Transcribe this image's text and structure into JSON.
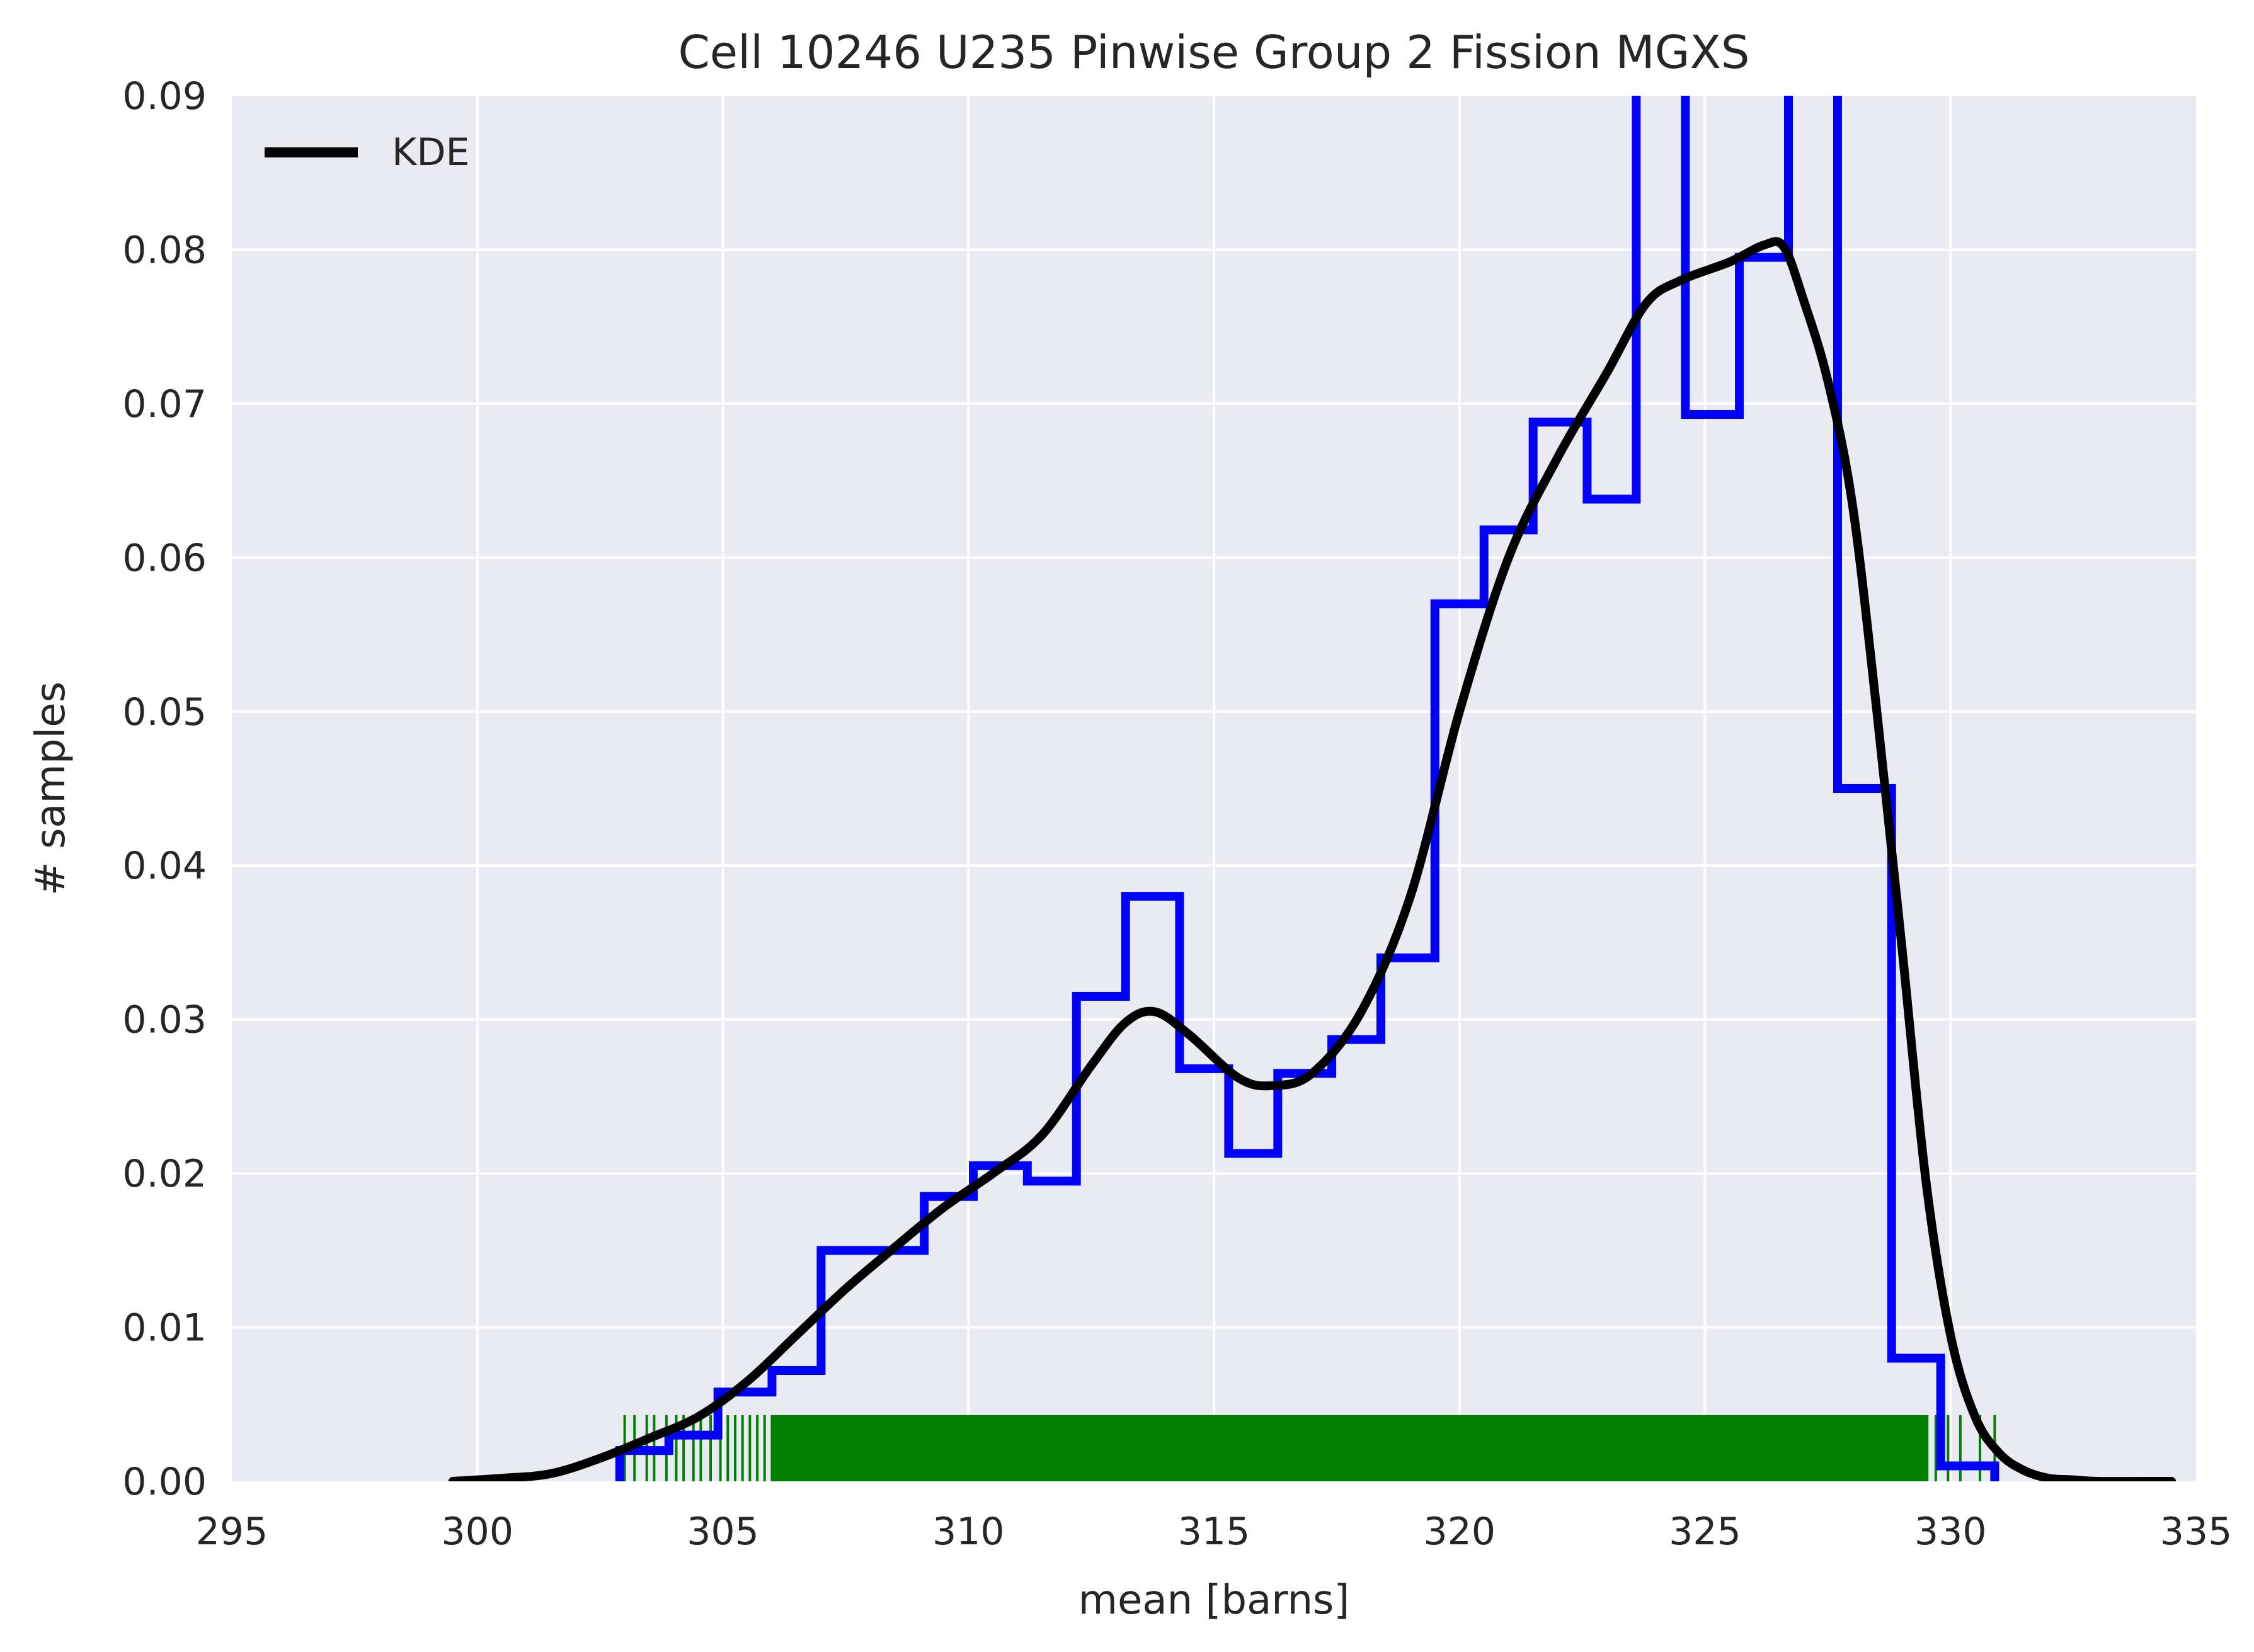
{
  "chart_data": {
    "type": "histogram",
    "title": "Cell 10246 U235 Pinwise Group 2 Fission MGXS",
    "xlabel": "mean [barns]",
    "ylabel": "# samples",
    "xlim": [
      295,
      335
    ],
    "ylim": [
      0,
      0.09
    ],
    "xticks": [
      295,
      300,
      305,
      310,
      315,
      320,
      325,
      330,
      335
    ],
    "yticks": [
      0.0,
      0.01,
      0.02,
      0.03,
      0.04,
      0.05,
      0.06,
      0.07,
      0.08,
      0.09
    ],
    "grid": true,
    "legend_position": "top-left",
    "colors": {
      "histogram": "#0000ff",
      "kde": "#000000",
      "rug": "#008000",
      "background": "#eaeaf2",
      "grid": "#ffffff"
    },
    "histogram": {
      "bin_edges": [
        302.9,
        303.9,
        304.9,
        306.0,
        307.0,
        308.1,
        309.1,
        310.1,
        311.2,
        312.2,
        313.2,
        314.3,
        315.3,
        316.3,
        317.4,
        318.4,
        319.5,
        320.5,
        321.5,
        322.6,
        323.6,
        324.6,
        325.7,
        326.7,
        327.7,
        328.8,
        329.8,
        330.9
      ],
      "counts": [
        0.002,
        0.003,
        0.0058,
        0.0072,
        0.015,
        0.015,
        0.0185,
        0.0205,
        0.0195,
        0.0315,
        0.038,
        0.0268,
        0.0213,
        0.0265,
        0.0287,
        0.034,
        0.057,
        0.0618,
        0.0688,
        0.0638,
        0.093,
        0.0693,
        0.0795,
        0.093,
        0.045,
        0.008,
        0.001
      ]
    },
    "series": [
      {
        "name": "KDE",
        "x": [
          299.5,
          300.5,
          301.5,
          302.5,
          303.5,
          304.5,
          305.5,
          306.5,
          307.5,
          308.5,
          309.5,
          310.5,
          311.5,
          312.5,
          313.2,
          313.8,
          314.5,
          315.5,
          316.2,
          317.0,
          318.0,
          319.0,
          320.0,
          321.0,
          322.0,
          323.0,
          323.8,
          324.5,
          325.5,
          326.2,
          326.6,
          327.0,
          327.5,
          328.0,
          328.5,
          329.0,
          329.5,
          330.0,
          330.5,
          331.0,
          331.5,
          332.0,
          332.5,
          333.0,
          334.0,
          334.5
        ],
        "y": [
          0.0,
          0.0002,
          0.0005,
          0.0015,
          0.0028,
          0.0042,
          0.0065,
          0.0095,
          0.0125,
          0.0152,
          0.0178,
          0.02,
          0.0225,
          0.027,
          0.0298,
          0.0305,
          0.029,
          0.0262,
          0.0257,
          0.0265,
          0.0305,
          0.038,
          0.05,
          0.06,
          0.0665,
          0.072,
          0.0765,
          0.078,
          0.0792,
          0.0803,
          0.0802,
          0.0768,
          0.0715,
          0.0635,
          0.05,
          0.035,
          0.0195,
          0.0095,
          0.0042,
          0.0018,
          0.0007,
          0.0002,
          0.0001,
          0.0,
          0.0,
          0.0
        ]
      }
    ],
    "rug": {
      "height": 0.0043,
      "sparse_x": [
        303.0,
        303.2,
        303.45,
        303.6,
        303.85,
        304.05,
        304.2,
        304.4,
        304.55,
        304.75,
        304.95,
        305.1,
        305.25,
        305.4,
        305.55,
        305.7,
        305.85,
        306.0,
        329.7,
        329.95,
        330.2,
        330.6,
        330.9
      ],
      "dense_range": [
        306.0,
        329.55
      ]
    }
  }
}
